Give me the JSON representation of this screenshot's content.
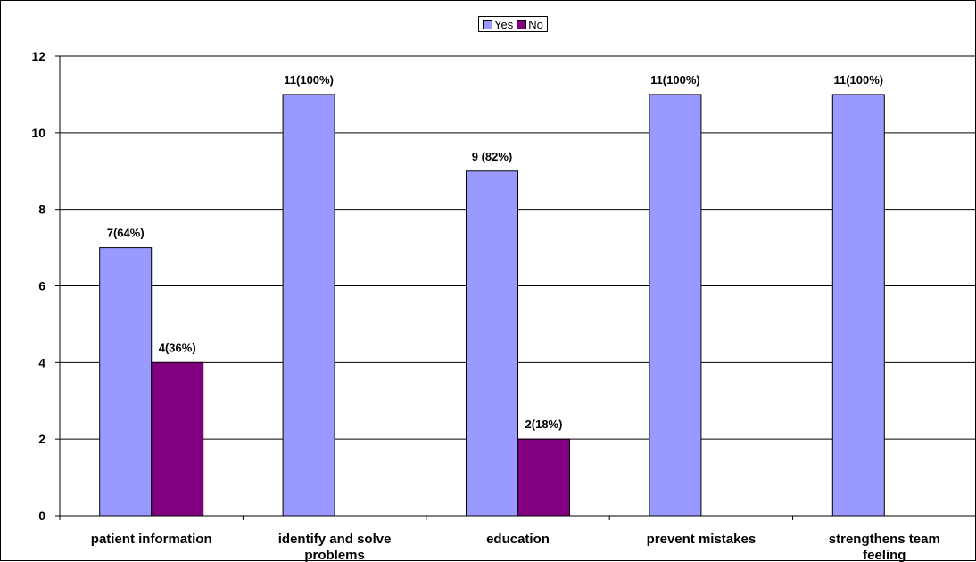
{
  "chart_data": {
    "type": "bar",
    "categories": [
      [
        "patient information"
      ],
      [
        "identify and solve",
        "problems"
      ],
      [
        "education"
      ],
      [
        "prevent mistakes"
      ],
      [
        "strengthens team",
        "feeling"
      ]
    ],
    "series": [
      {
        "name": "Yes",
        "color": "#9999ff",
        "values": [
          7,
          11,
          9,
          11,
          11
        ],
        "labels": [
          "7(64%)",
          "11(100%)",
          "9 (82%)",
          "11(100%)",
          "11(100%)"
        ]
      },
      {
        "name": "No",
        "color": "#800080",
        "values": [
          4,
          null,
          2,
          null,
          null
        ],
        "labels": [
          "4(36%)",
          null,
          "2(18%)",
          null,
          null
        ]
      }
    ],
    "ylim": [
      0,
      12
    ],
    "yticks": [
      0,
      2,
      4,
      6,
      8,
      10,
      12
    ],
    "grid": true,
    "legend_position": "top-center"
  }
}
